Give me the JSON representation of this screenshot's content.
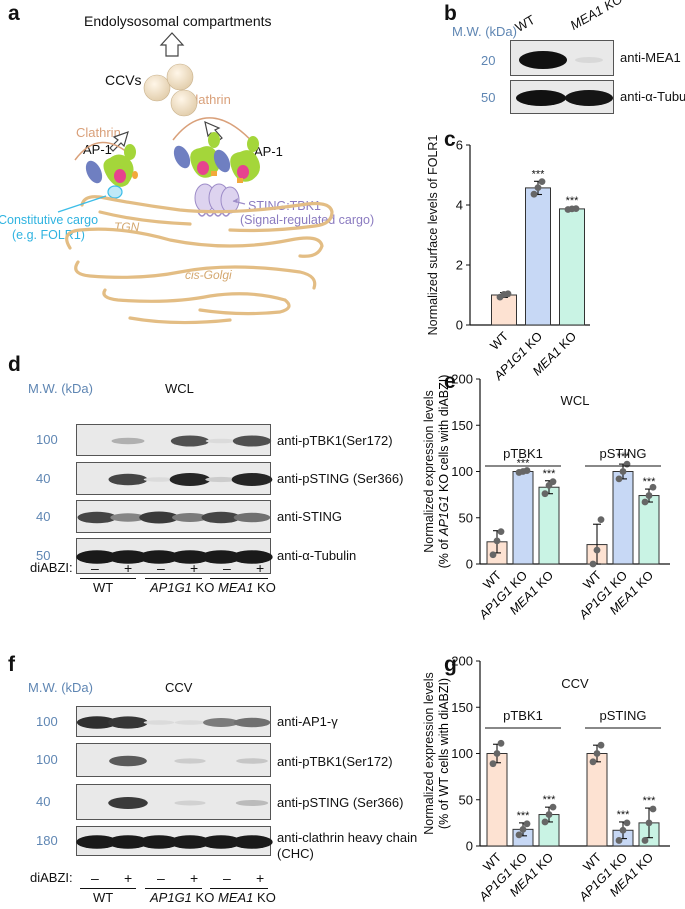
{
  "panel_a": {
    "letter": "a",
    "endolysosomal": "Endolysosomal compartments",
    "ccvs": "CCVs",
    "clathrin_left": "Clathrin",
    "clathrin_right": "Clathrin",
    "ap1_left": "AP-1",
    "ap1_right": "AP-1",
    "constitutive_cargo": "Constitutive cargo",
    "constitutive_example": "(e.g. FOLR1)",
    "tgn": "TGN",
    "sting_tbk1": "STING:TBK1",
    "signal_cargo": "(Signal-regulated cargo)",
    "cis_golgi": "cis-Golgi",
    "colors": {
      "clathrin": "#d9a07a",
      "ap1_green": "#a4d63a",
      "ap1_blue": "#6f7fc1",
      "pink": "#e6438e",
      "cargo": "#3cbde8",
      "sting": "#9d8cc8",
      "golgi": "#e3bd84"
    }
  },
  "panel_b": {
    "letter": "b",
    "mw_label": "M.W. (kDa)",
    "lanes": [
      "WT",
      "MEA1 KO"
    ],
    "mw_marks": [
      "20",
      "50"
    ],
    "bands": [
      "anti-MEA1",
      "anti-α-Tubulin"
    ]
  },
  "panel_d": {
    "letter": "d",
    "mw_label": "M.W. (kDa)",
    "fraction": "WCL",
    "mw_marks": [
      "100",
      "40",
      "40",
      "50"
    ],
    "bands": [
      "anti-pTBK1(Ser172)",
      "anti-pSTING (Ser366)",
      "anti-STING",
      "anti-α-Tubulin"
    ],
    "treatment_label": "diABZI:",
    "treatment_signs": [
      "–",
      "+",
      "–",
      "+",
      "–",
      "+"
    ],
    "groups": [
      "WT",
      "AP1G1 KO",
      "MEA1 KO"
    ]
  },
  "panel_f": {
    "letter": "f",
    "mw_label": "M.W. (kDa)",
    "fraction": "CCV",
    "mw_marks": [
      "100",
      "100",
      "40",
      "180"
    ],
    "bands": [
      "anti-AP1-γ",
      "anti-pTBK1(Ser172)",
      "anti-pSTING (Ser366)",
      "anti-clathrin heavy chain",
      "(CHC)"
    ],
    "treatment_label": "diABZI:",
    "treatment_signs": [
      "–",
      "+",
      "–",
      "+",
      "–",
      "+"
    ],
    "groups": [
      "WT",
      "AP1G1 KO",
      "MEA1 KO"
    ]
  },
  "chart_data": [
    {
      "id": "c",
      "letter": "c",
      "type": "bar",
      "categories": [
        "WT",
        "AP1G1 KO",
        "MEA1 KO"
      ],
      "values": [
        1.0,
        4.57,
        3.87
      ],
      "errors": [
        0.08,
        0.22,
        0.03
      ],
      "points": [
        [
          0.93,
          1.02,
          1.04
        ],
        [
          4.36,
          4.58,
          4.78
        ],
        [
          3.85,
          3.87,
          3.88
        ]
      ],
      "significance": [
        "",
        "***",
        "***"
      ],
      "ylabel": "Normalized surface levels of FOLR1",
      "ylim": [
        0,
        6
      ],
      "yticks": [
        "0",
        "2",
        "4",
        "6"
      ],
      "colors": [
        "#fde2d2",
        "#c7d8f5",
        "#c9f3e4"
      ]
    },
    {
      "id": "e",
      "letter": "e",
      "type": "bar",
      "title": "WCL",
      "categories": [
        "WT",
        "AP1G1 KO",
        "MEA1 KO",
        "WT",
        "AP1G1 KO",
        "MEA1 KO"
      ],
      "groups": [
        "pTBK1",
        "pSTING"
      ],
      "values": [
        24,
        100,
        83,
        21,
        100,
        74
      ],
      "errors": [
        12,
        1,
        7,
        22,
        8,
        7
      ],
      "points": [
        [
          10,
          25,
          35
        ],
        [
          99,
          100,
          101
        ],
        [
          76,
          85,
          89
        ],
        [
          0,
          15,
          48
        ],
        [
          92,
          100,
          108
        ],
        [
          67,
          74,
          83
        ]
      ],
      "significance": [
        "",
        "***",
        "***",
        "",
        "***",
        "***"
      ],
      "ylabel": "Normalized expression levels",
      "ylabel2": "(% of AP1G1 KO cells with diABZI)",
      "ylim": [
        0,
        200
      ],
      "yticks": [
        "0",
        "50",
        "100",
        "150",
        "200"
      ],
      "colors": [
        "#fde2d2",
        "#c7d8f5",
        "#c9f3e4"
      ]
    },
    {
      "id": "g",
      "letter": "g",
      "type": "bar",
      "title": "CCV",
      "categories": [
        "WT",
        "AP1G1 KO",
        "MEA1 KO",
        "WT",
        "AP1G1 KO",
        "MEA1 KO"
      ],
      "groups": [
        "pTBK1",
        "pSTING"
      ],
      "values": [
        100,
        18,
        34,
        100,
        17,
        25
      ],
      "errors": [
        10,
        7,
        8,
        9,
        9,
        16
      ],
      "points": [
        [
          89,
          100,
          111
        ],
        [
          12,
          18,
          24
        ],
        [
          26,
          34,
          42
        ],
        [
          91,
          100,
          109
        ],
        [
          6,
          17,
          25
        ],
        [
          6,
          25,
          40
        ]
      ],
      "significance": [
        "",
        "***",
        "***",
        "",
        "***",
        "***"
      ],
      "ylabel": "Normalized expression levels",
      "ylabel2": "(% of WT cells with diABZI)",
      "ylim": [
        0,
        200
      ],
      "yticks": [
        "0",
        "50",
        "100",
        "150",
        "200"
      ],
      "colors": [
        "#fde2d2",
        "#c7d8f5",
        "#c9f3e4"
      ]
    }
  ]
}
